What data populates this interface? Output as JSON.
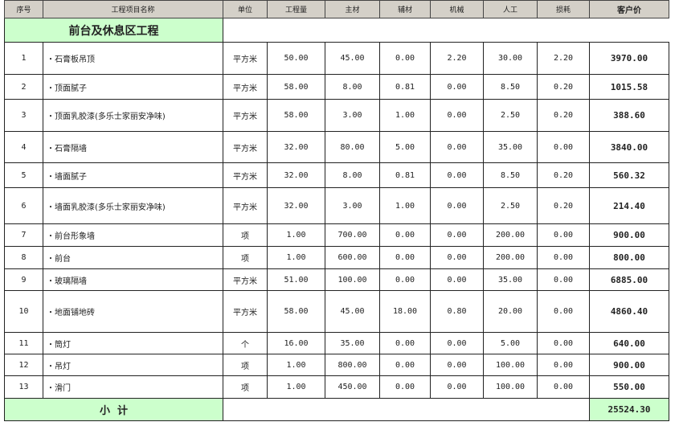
{
  "columns": [
    "序号",
    "工程项目名称",
    "单位",
    "工程量",
    "主材",
    "辅材",
    "机械",
    "人工",
    "损耗",
    "客户价"
  ],
  "section_title": "前台及休息区工程",
  "rows": [
    {
      "no": "1",
      "name": "・石膏板吊顶",
      "unit": "平方米",
      "qty": "50.00",
      "main": "45.00",
      "aux": "0.00",
      "mach": "2.20",
      "labor": "30.00",
      "loss": "2.20",
      "price": "3970.00"
    },
    {
      "no": "2",
      "name": "・顶面腻子",
      "unit": "平方米",
      "qty": "58.00",
      "main": "8.00",
      "aux": "0.81",
      "mach": "0.00",
      "labor": "8.50",
      "loss": "0.20",
      "price": "1015.58"
    },
    {
      "no": "3",
      "name": "・顶面乳胶漆(多乐士家丽安净味)",
      "unit": "平方米",
      "qty": "58.00",
      "main": "3.00",
      "aux": "1.00",
      "mach": "0.00",
      "labor": "2.50",
      "loss": "0.20",
      "price": "388.60"
    },
    {
      "no": "4",
      "name": "・石膏隔墙",
      "unit": "平方米",
      "qty": "32.00",
      "main": "80.00",
      "aux": "5.00",
      "mach": "0.00",
      "labor": "35.00",
      "loss": "0.00",
      "price": "3840.00"
    },
    {
      "no": "5",
      "name": "・墙面腻子",
      "unit": "平方米",
      "qty": "32.00",
      "main": "8.00",
      "aux": "0.81",
      "mach": "0.00",
      "labor": "8.50",
      "loss": "0.20",
      "price": "560.32"
    },
    {
      "no": "6",
      "name": "・墙面乳胶漆(多乐士家丽安净味)",
      "unit": "平方米",
      "qty": "32.00",
      "main": "3.00",
      "aux": "1.00",
      "mach": "0.00",
      "labor": "2.50",
      "loss": "0.20",
      "price": "214.40"
    },
    {
      "no": "7",
      "name": "・前台形象墙",
      "unit": "项",
      "qty": "1.00",
      "main": "700.00",
      "aux": "0.00",
      "mach": "0.00",
      "labor": "200.00",
      "loss": "0.00",
      "price": "900.00"
    },
    {
      "no": "8",
      "name": "・前台",
      "unit": "项",
      "qty": "1.00",
      "main": "600.00",
      "aux": "0.00",
      "mach": "0.00",
      "labor": "200.00",
      "loss": "0.00",
      "price": "800.00"
    },
    {
      "no": "9",
      "name": "・玻璃隔墙",
      "unit": "平方米",
      "qty": "51.00",
      "main": "100.00",
      "aux": "0.00",
      "mach": "0.00",
      "labor": "35.00",
      "loss": "0.00",
      "price": "6885.00"
    },
    {
      "no": "10",
      "name": "・地面铺地砖",
      "unit": "平方米",
      "qty": "58.00",
      "main": "45.00",
      "aux": "18.00",
      "mach": "0.80",
      "labor": "20.00",
      "loss": "0.00",
      "price": "4860.40"
    },
    {
      "no": "11",
      "name": "・筒灯",
      "unit": "个",
      "qty": "16.00",
      "main": "35.00",
      "aux": "0.00",
      "mach": "0.00",
      "labor": "5.00",
      "loss": "0.00",
      "price": "640.00"
    },
    {
      "no": "12",
      "name": "・吊灯",
      "unit": "项",
      "qty": "1.00",
      "main": "800.00",
      "aux": "0.00",
      "mach": "0.00",
      "labor": "100.00",
      "loss": "0.00",
      "price": "900.00"
    },
    {
      "no": "13",
      "name": "・滑门",
      "unit": "项",
      "qty": "1.00",
      "main": "450.00",
      "aux": "0.00",
      "mach": "0.00",
      "labor": "100.00",
      "loss": "0.00",
      "price": "550.00"
    }
  ],
  "subtotal": {
    "label": "小  计",
    "value": "25524.30"
  },
  "colors": {
    "header_bg": "#d4d0c8",
    "section_bg": "#ccffcc"
  }
}
